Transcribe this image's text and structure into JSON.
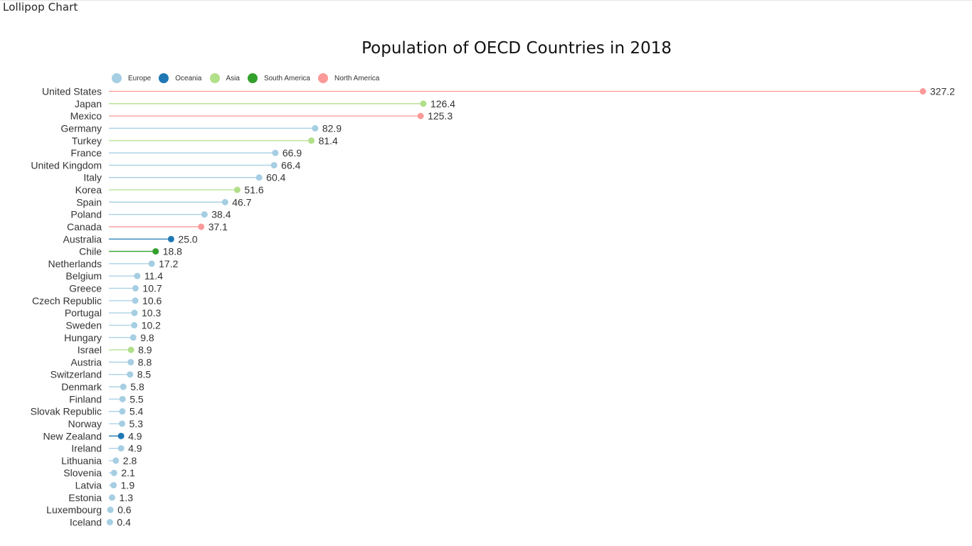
{
  "visual": {
    "title": "Lollipop Chart"
  },
  "chart_data": {
    "type": "lollipop",
    "title": "Population of OECD Countries in 2018",
    "xlabel": "",
    "ylabel": "",
    "xlim": [
      0,
      327.2
    ],
    "grid": false,
    "legend_position": "top-left",
    "legend": [
      {
        "name": "Europe",
        "color": "#a6cee3"
      },
      {
        "name": "Oceania",
        "color": "#1f78b4"
      },
      {
        "name": "Asia",
        "color": "#b2df8a"
      },
      {
        "name": "South America",
        "color": "#33a02c"
      },
      {
        "name": "North America",
        "color": "#fb9a99"
      }
    ],
    "categories": [
      "United States",
      "Japan",
      "Mexico",
      "Germany",
      "Turkey",
      "France",
      "United Kingdom",
      "Italy",
      "Korea",
      "Spain",
      "Poland",
      "Canada",
      "Australia",
      "Chile",
      "Netherlands",
      "Belgium",
      "Greece",
      "Czech Republic",
      "Portugal",
      "Sweden",
      "Hungary",
      "Israel",
      "Austria",
      "Switzerland",
      "Denmark",
      "Finland",
      "Slovak Republic",
      "Norway",
      "New Zealand",
      "Ireland",
      "Lithuania",
      "Slovenia",
      "Latvia",
      "Estonia",
      "Luxembourg",
      "Iceland"
    ],
    "values": [
      327.2,
      126.4,
      125.3,
      82.9,
      81.4,
      66.9,
      66.4,
      60.4,
      51.6,
      46.7,
      38.4,
      37.1,
      25.0,
      18.8,
      17.2,
      11.4,
      10.7,
      10.6,
      10.3,
      10.2,
      9.8,
      8.9,
      8.8,
      8.5,
      5.8,
      5.5,
      5.4,
      5.3,
      4.9,
      4.9,
      2.8,
      2.1,
      1.9,
      1.3,
      0.6,
      0.4
    ],
    "value_labels": [
      "327.2",
      "126.4",
      "125.3",
      "82.9",
      "81.4",
      "66.9",
      "66.4",
      "60.4",
      "51.6",
      "46.7",
      "38.4",
      "37.1",
      "25.0",
      "18.8",
      "17.2",
      "11.4",
      "10.7",
      "10.6",
      "10.3",
      "10.2",
      "9.8",
      "8.9",
      "8.8",
      "8.5",
      "5.8",
      "5.5",
      "5.4",
      "5.3",
      "4.9",
      "4.9",
      "2.8",
      "2.1",
      "1.9",
      "1.3",
      "0.6",
      "0.4"
    ],
    "groups": [
      "North America",
      "Asia",
      "North America",
      "Europe",
      "Asia",
      "Europe",
      "Europe",
      "Europe",
      "Asia",
      "Europe",
      "Europe",
      "North America",
      "Oceania",
      "South America",
      "Europe",
      "Europe",
      "Europe",
      "Europe",
      "Europe",
      "Europe",
      "Europe",
      "Asia",
      "Europe",
      "Europe",
      "Europe",
      "Europe",
      "Europe",
      "Europe",
      "Oceania",
      "Europe",
      "Europe",
      "Europe",
      "Europe",
      "Europe",
      "Europe",
      "Europe"
    ]
  }
}
